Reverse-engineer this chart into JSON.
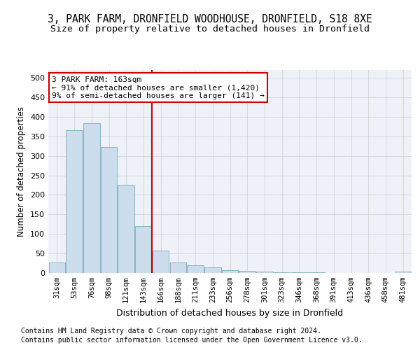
{
  "title_line1": "3, PARK FARM, DRONFIELD WOODHOUSE, DRONFIELD, S18 8XE",
  "title_line2": "Size of property relative to detached houses in Dronfield",
  "xlabel": "Distribution of detached houses by size in Dronfield",
  "ylabel": "Number of detached properties",
  "categories": [
    "31sqm",
    "53sqm",
    "76sqm",
    "98sqm",
    "121sqm",
    "143sqm",
    "166sqm",
    "188sqm",
    "211sqm",
    "233sqm",
    "256sqm",
    "278sqm",
    "301sqm",
    "323sqm",
    "346sqm",
    "368sqm",
    "391sqm",
    "413sqm",
    "436sqm",
    "458sqm",
    "481sqm"
  ],
  "values": [
    27,
    365,
    383,
    322,
    226,
    120,
    57,
    27,
    20,
    15,
    7,
    5,
    3,
    2,
    1,
    1,
    0,
    0,
    0,
    0,
    4
  ],
  "bar_color": "#ccdded",
  "bar_edge_color": "#7aaabb",
  "grid_color": "#cccccc",
  "vline_x_index": 6,
  "vline_color": "#cc0000",
  "annotation_text": "3 PARK FARM: 163sqm\n← 91% of detached houses are smaller (1,420)\n9% of semi-detached houses are larger (141) →",
  "annotation_box_color": "#ffffff",
  "annotation_box_edge_color": "#cc0000",
  "footer_line1": "Contains HM Land Registry data © Crown copyright and database right 2024.",
  "footer_line2": "Contains public sector information licensed under the Open Government Licence v3.0.",
  "ylim": [
    0,
    520
  ],
  "yticks": [
    0,
    50,
    100,
    150,
    200,
    250,
    300,
    350,
    400,
    450,
    500
  ],
  "title_fontsize": 10.5,
  "subtitle_fontsize": 9.5,
  "background_color": "#eef2f8"
}
